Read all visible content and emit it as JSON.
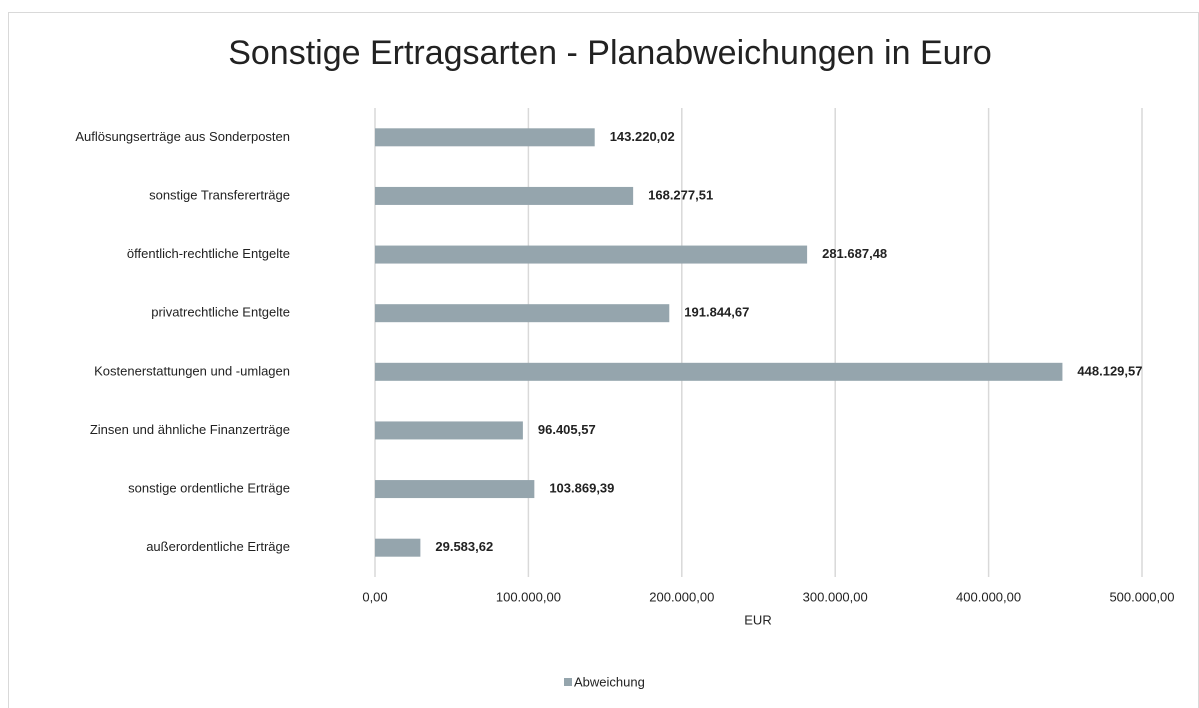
{
  "chart_data": {
    "type": "barh",
    "title": "Sonstige Ertragsarten - Planabweichungen in Euro",
    "xlabel": "EUR",
    "categories": [
      "Auflösungserträge aus Sonderposten",
      "sonstige Transfererträge",
      "öffentlich-rechtliche Entgelte",
      "privatrechtliche Entgelte",
      "Kostenerstattungen und -umlagen",
      "Zinsen und ähnliche Finanzerträge",
      "sonstige ordentliche Erträge",
      "außerordentliche Erträge"
    ],
    "series": [
      {
        "name": "Abweichung",
        "color": "#95a5ad",
        "values": [
          143220.02,
          168277.51,
          281687.48,
          191844.67,
          448129.57,
          96405.57,
          103869.39,
          29583.62
        ],
        "value_labels": [
          "143.220,02",
          "168.277,51",
          "281.687,48",
          "191.844,67",
          "448.129,57",
          "96.405,57",
          "103.869,39",
          "29.583,62"
        ]
      }
    ],
    "xlim": [
      0,
      500000
    ],
    "xticks": [
      {
        "value": 0,
        "label": "0,00"
      },
      {
        "value": 100000,
        "label": "100.000,00"
      },
      {
        "value": 200000,
        "label": "200.000,00"
      },
      {
        "value": 300000,
        "label": "300.000,00"
      },
      {
        "value": 400000,
        "label": "400.000,00"
      },
      {
        "value": 500000,
        "label": "500.000,00"
      }
    ],
    "grid": true,
    "legend": "bottom"
  }
}
